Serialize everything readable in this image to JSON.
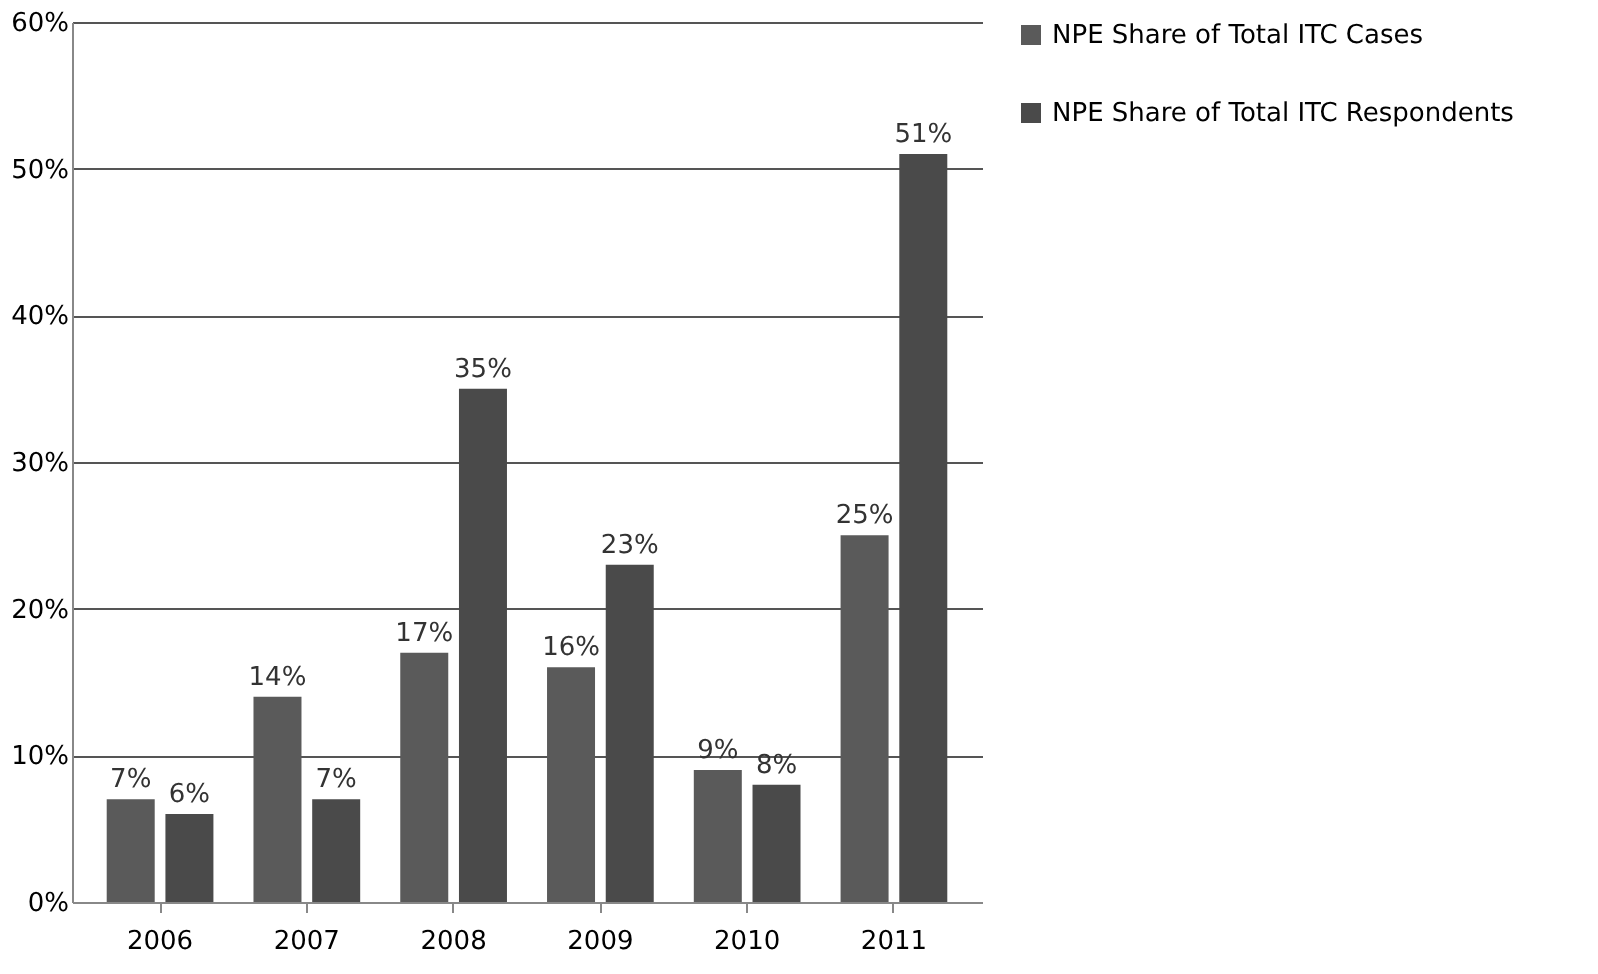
{
  "chart_data": {
    "type": "bar",
    "categories": [
      "2006",
      "2007",
      "2008",
      "2009",
      "2010",
      "2011"
    ],
    "series": [
      {
        "name": "NPE Share of Total ITC Cases",
        "color": "#5a5a5a",
        "values": [
          7,
          14,
          17,
          16,
          9,
          25
        ],
        "value_labels": [
          "7%",
          "14%",
          "17%",
          "16%",
          "9%",
          "25%"
        ]
      },
      {
        "name": "NPE Share of Total ITC Respondents",
        "color": "#4a4a4a",
        "values": [
          6,
          7,
          35,
          23,
          8,
          51
        ],
        "value_labels": [
          "6%",
          "7%",
          "35%",
          "23%",
          "8%",
          "51%"
        ]
      }
    ],
    "ylim": [
      0,
      60
    ],
    "yticks": [
      {
        "value": 0,
        "label": "0%"
      },
      {
        "value": 10,
        "label": "10%"
      },
      {
        "value": 20,
        "label": "20%"
      },
      {
        "value": 30,
        "label": "30%"
      },
      {
        "value": 40,
        "label": "40%"
      },
      {
        "value": 50,
        "label": "50%"
      },
      {
        "value": 60,
        "label": "60%"
      }
    ],
    "grid": "y",
    "legend": "right"
  }
}
